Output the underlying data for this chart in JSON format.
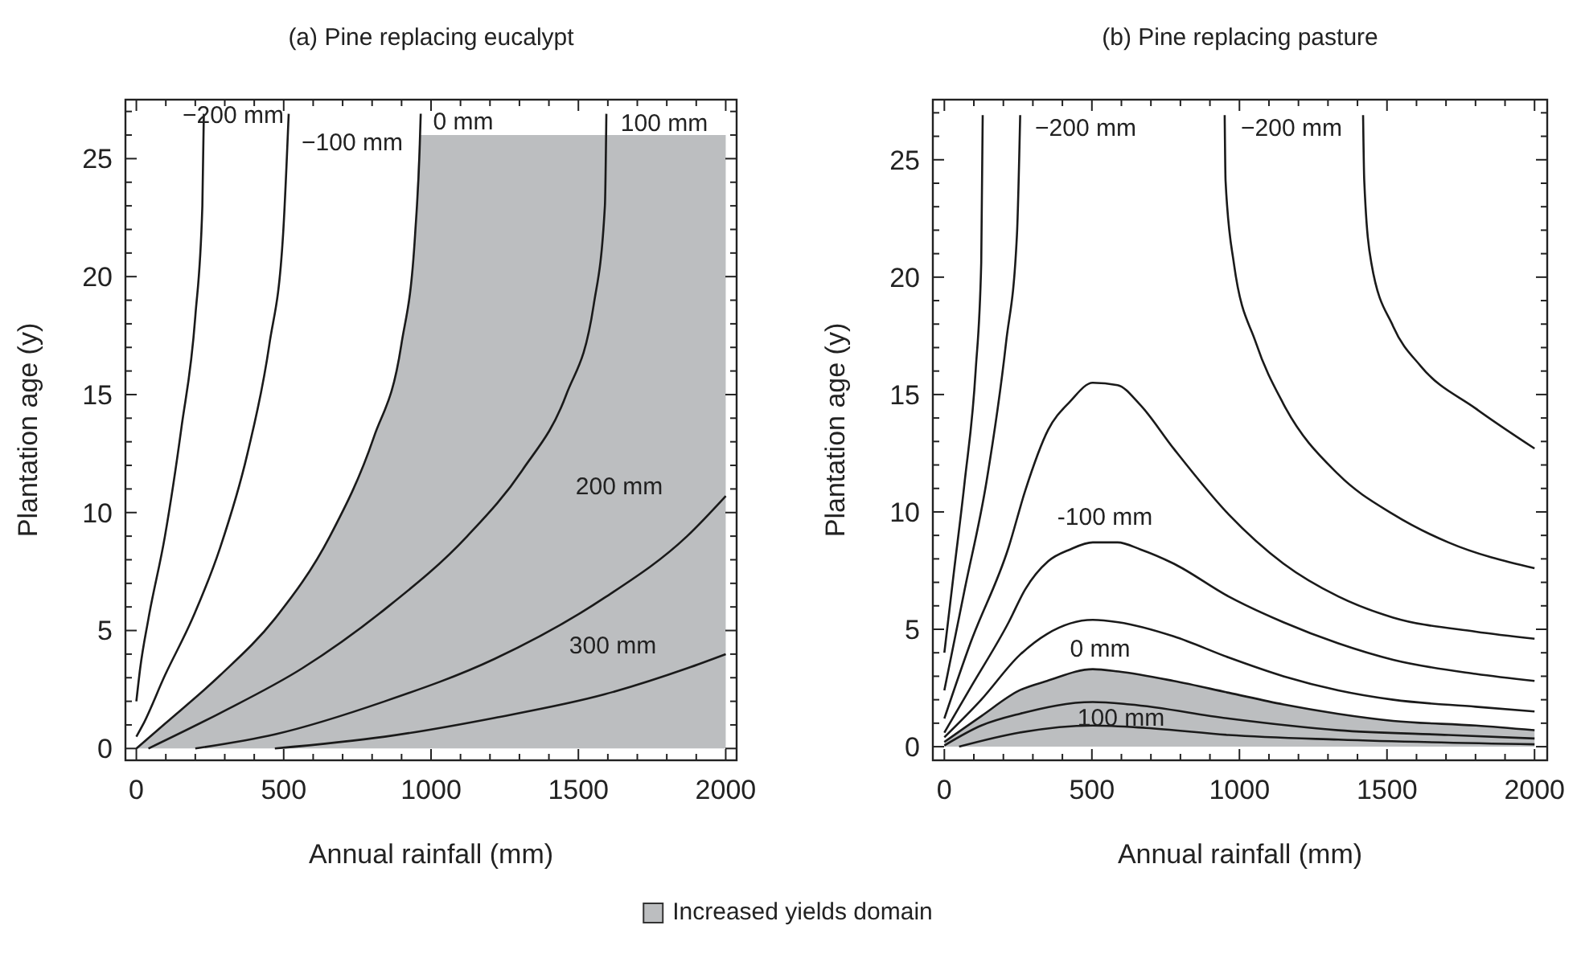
{
  "chart_data": [
    {
      "type": "line",
      "title": "(a) Pine replacing eucalypt",
      "xlabel": "Annual rainfall (mm)",
      "ylabel": "Plantation age (y)",
      "xlim": [
        -37,
        2037
      ],
      "ylim": [
        -0.5,
        27.5
      ],
      "xticks": [
        0,
        {
          "value": 100,
          "label": null
        },
        {
          "value": 200,
          "label": null
        },
        {
          "value": 300,
          "label": null
        },
        {
          "value": 400,
          "label": null
        },
        500,
        {
          "value": 600,
          "label": null
        },
        {
          "value": 700,
          "label": null
        },
        {
          "value": 800,
          "label": null
        },
        {
          "value": 900,
          "label": null
        },
        1000,
        {
          "value": 1100,
          "label": null
        },
        {
          "value": 1200,
          "label": null
        },
        {
          "value": 1300,
          "label": null
        },
        {
          "value": 1400,
          "label": null
        },
        1500,
        {
          "value": 1600,
          "label": null
        },
        {
          "value": 1700,
          "label": null
        },
        {
          "value": 1800,
          "label": null
        },
        {
          "value": 1900,
          "label": null
        },
        2000
      ],
      "yticks": [
        0,
        {
          "value": 1,
          "label": null
        },
        {
          "value": 2,
          "label": null
        },
        {
          "value": 3,
          "label": null
        },
        {
          "value": 4,
          "label": null
        },
        5,
        {
          "value": 6,
          "label": null
        },
        {
          "value": 7,
          "label": null
        },
        {
          "value": 8,
          "label": null
        },
        {
          "value": 9,
          "label": null
        },
        10,
        {
          "value": 11,
          "label": null
        },
        {
          "value": 12,
          "label": null
        },
        {
          "value": 13,
          "label": null
        },
        {
          "value": 14,
          "label": null
        },
        15,
        {
          "value": 16,
          "label": null
        },
        {
          "value": 17,
          "label": null
        },
        {
          "value": 18,
          "label": null
        },
        {
          "value": 19,
          "label": null
        },
        20,
        {
          "value": 21,
          "label": null
        },
        {
          "value": 22,
          "label": null
        },
        {
          "value": 23,
          "label": null
        },
        {
          "value": 24,
          "label": null
        },
        25,
        {
          "value": 26,
          "label": null
        },
        {
          "value": 27,
          "label": null
        }
      ],
      "legend": "bottom",
      "grid": false,
      "line_style": "solid",
      "marker": "none",
      "series": [
        {
          "type": "area",
          "name": "Increased yields domain",
          "color": "#bcbec0",
          "x": [
            0,
            97,
            284,
            470,
            657,
            806,
            899,
            946,
            963,
            2000
          ],
          "values": [
            0,
            1.05,
            3.1,
            5.5,
            9,
            13.2,
            17.1,
            21.8,
            26,
            26
          ]
        },
        {
          "color": "#1a1a1a",
          "x": [
            0,
            13,
            41,
            97,
            153,
            200,
            224,
            229
          ],
          "values": [
            2.0,
            3.4,
            5.5,
            9.0,
            13.6,
            18.3,
            23,
            26.9
          ]
        },
        {
          "color": "#1a1a1a",
          "x": [
            0,
            22,
            97,
            190,
            284,
            377,
            451,
            498,
            517
          ],
          "values": [
            0.5,
            1.0,
            3.1,
            5.5,
            8.5,
            12.5,
            17.1,
            21.8,
            26.9
          ]
        },
        {
          "color": "#1a1a1a",
          "x": [
            0,
            97,
            284,
            470,
            657,
            806,
            899,
            946,
            961,
            965
          ],
          "values": [
            0,
            1.05,
            3.1,
            5.5,
            9.0,
            13.2,
            17.1,
            21.8,
            25.3,
            26.9
          ]
        },
        {
          "color": "#1a1a1a",
          "x": [
            41,
            284,
            563,
            843,
            1123,
            1310,
            1459,
            1552,
            1590,
            1595
          ],
          "values": [
            0,
            1.5,
            3.4,
            5.9,
            9.0,
            11.8,
            15.0,
            18.8,
            23,
            26.9
          ]
        },
        {
          "color": "#1a1a1a",
          "x": [
            200,
            470,
            843,
            1216,
            1590,
            1869,
            2000
          ],
          "values": [
            0,
            0.6,
            2.0,
            3.8,
            6.4,
            9.0,
            10.7
          ]
        },
        {
          "color": "#1a1a1a",
          "x": [
            470,
            843,
            1216,
            1590,
            1869,
            2000
          ],
          "values": [
            0,
            0.5,
            1.3,
            2.3,
            3.4,
            4.0
          ]
        }
      ],
      "annotations": [
        "−200 mm",
        "−100 mm",
        "0 mm",
        "100 mm",
        "200 mm",
        "300 mm"
      ]
    },
    {
      "type": "line",
      "title": "(b) Pine replacing pasture",
      "xlabel": "Annual rainfall (mm)",
      "ylabel": "Plantation age (y)",
      "xlim": [
        -39,
        2043
      ],
      "ylim": [
        -0.58,
        27.56
      ],
      "xticks": [
        0,
        {
          "value": 100,
          "label": null
        },
        {
          "value": 200,
          "label": null
        },
        {
          "value": 300,
          "label": null
        },
        {
          "value": 400,
          "label": null
        },
        500,
        {
          "value": 600,
          "label": null
        },
        {
          "value": 700,
          "label": null
        },
        {
          "value": 800,
          "label": null
        },
        {
          "value": 900,
          "label": null
        },
        1000,
        {
          "value": 1100,
          "label": null
        },
        {
          "value": 1200,
          "label": null
        },
        {
          "value": 1300,
          "label": null
        },
        {
          "value": 1400,
          "label": null
        },
        1500,
        {
          "value": 1600,
          "label": null
        },
        {
          "value": 1700,
          "label": null
        },
        {
          "value": 1800,
          "label": null
        },
        {
          "value": 1900,
          "label": null
        },
        2000
      ],
      "yticks": [
        0,
        {
          "value": 1,
          "label": null
        },
        {
          "value": 2,
          "label": null
        },
        {
          "value": 3,
          "label": null
        },
        {
          "value": 4,
          "label": null
        },
        5,
        {
          "value": 6,
          "label": null
        },
        {
          "value": 7,
          "label": null
        },
        {
          "value": 8,
          "label": null
        },
        {
          "value": 9,
          "label": null
        },
        10,
        {
          "value": 11,
          "label": null
        },
        {
          "value": 12,
          "label": null
        },
        {
          "value": 13,
          "label": null
        },
        {
          "value": 14,
          "label": null
        },
        15,
        {
          "value": 16,
          "label": null
        },
        {
          "value": 17,
          "label": null
        },
        {
          "value": 18,
          "label": null
        },
        {
          "value": 19,
          "label": null
        },
        20,
        {
          "value": 21,
          "label": null
        },
        {
          "value": 22,
          "label": null
        },
        {
          "value": 23,
          "label": null
        },
        {
          "value": 24,
          "label": null
        },
        25,
        {
          "value": 26,
          "label": null
        },
        {
          "value": 27,
          "label": null
        }
      ],
      "grid": false,
      "line_style": "solid",
      "marker": "none",
      "series": [
        {
          "type": "area",
          "color": "#bcbec0",
          "line_style": "solid",
          "x": [
            0,
            125,
            255,
            348,
            503,
            590,
            777,
            963,
            1149,
            1335,
            1521,
            1801,
            2000
          ],
          "values": [
            0.2,
            1.3,
            2.4,
            2.8,
            3.3,
            3.2,
            2.8,
            2.3,
            1.8,
            1.4,
            1.1,
            0.9,
            0.7
          ]
        },
        {
          "color": "#1a1a1a",
          "x": [
            0,
            32,
            69,
            106,
            125,
            130
          ],
          "values": [
            4.0,
            7.4,
            11.3,
            16.0,
            20.6,
            26.9
          ]
        },
        {
          "color": "#1a1a1a",
          "x": [
            0,
            69,
            143,
            209,
            246,
            257
          ],
          "values": [
            2.4,
            6.7,
            11.3,
            17.2,
            21.8,
            26.9
          ]
        },
        {
          "color": "#1a1a1a",
          "x": [
            0,
            88,
            218,
            274,
            352,
            426,
            503,
            587,
            661,
            777,
            963,
            1149,
            1335,
            1521,
            1801,
            2000
          ],
          "values": [
            1.2,
            4.4,
            8.5,
            10.9,
            13.5,
            14.7,
            15.5,
            15.4,
            14.6,
            12.7,
            9.9,
            7.8,
            6.4,
            5.5,
            4.9,
            4.6
          ]
        },
        {
          "color": "#1a1a1a",
          "x": [
            0,
            88,
            218,
            274,
            352,
            426,
            503,
            587,
            665,
            777,
            963,
            1149,
            1335,
            1521,
            1801,
            2000
          ],
          "values": [
            0.6,
            2.5,
            5.3,
            6.7,
            7.9,
            8.4,
            8.7,
            8.7,
            8.4,
            7.8,
            6.4,
            5.3,
            4.4,
            3.7,
            3.1,
            2.8
          ]
        },
        {
          "color": "#1a1a1a",
          "x": [
            0,
            125,
            255,
            348,
            503,
            590,
            777,
            963,
            1149,
            1335,
            1521,
            1801,
            2000
          ],
          "values": [
            0.4,
            2.0,
            3.9,
            4.8,
            5.4,
            5.3,
            4.7,
            3.8,
            3.0,
            2.4,
            2.0,
            1.7,
            1.5
          ]
        },
        {
          "color": "#1a1a1a",
          "x": [
            0,
            125,
            255,
            503,
            628,
            963,
            1335,
            1708,
            2000
          ],
          "values": [
            0.05,
            0.9,
            1.4,
            1.9,
            1.8,
            1.2,
            0.7,
            0.5,
            0.35
          ]
        },
        {
          "color": "#1a1a1a",
          "x": [
            50,
            255,
            503,
            683,
            963,
            1335,
            2000
          ],
          "values": [
            0,
            0.6,
            0.9,
            0.8,
            0.5,
            0.3,
            0.1
          ]
        },
        {
          "color": "#1a1a1a",
          "x": [
            950,
            953,
            981,
            1056,
            1149,
            1335,
            1521,
            1708,
            2000
          ],
          "values": [
            26.9,
            24.1,
            20.6,
            17.2,
            14.6,
            11.6,
            9.9,
            8.7,
            7.6
          ]
        },
        {
          "color": "#1a1a1a",
          "x": [
            1419,
            1423,
            1447,
            1521,
            1615,
            1801,
            2000
          ],
          "values": [
            26.9,
            24.1,
            20.6,
            17.9,
            16.2,
            14.4,
            12.7
          ]
        }
      ],
      "annotations": [
        "−200 mm",
        "−200 mm",
        "-100 mm",
        "0 mm",
        "100 mm"
      ]
    }
  ]
}
